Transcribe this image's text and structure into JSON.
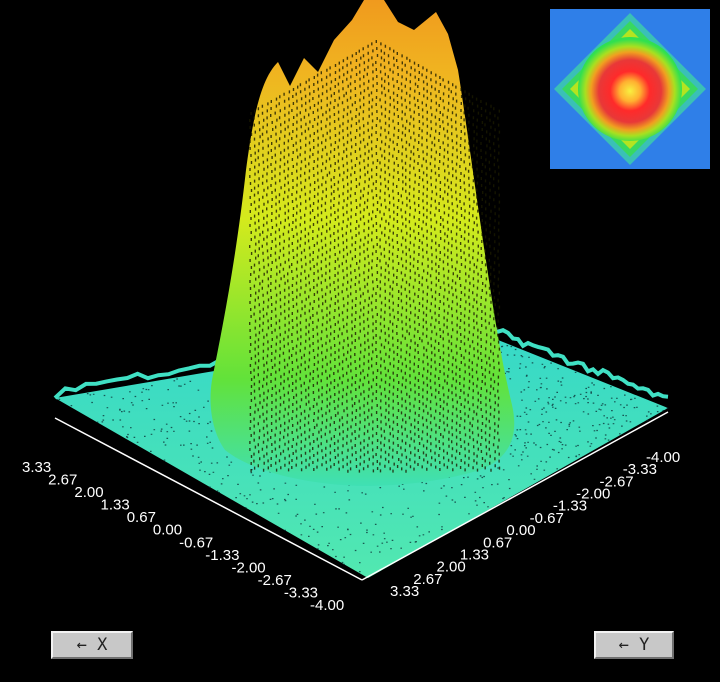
{
  "x_axis": {
    "ticks": [
      "3.33",
      "2.67",
      "2.00",
      "1.33",
      "0.67",
      "0.00",
      "-0.67",
      "-1.33",
      "-2.00",
      "-2.67",
      "-3.33",
      "-4.00"
    ]
  },
  "y_axis": {
    "ticks": [
      "3.33",
      "2.67",
      "2.00",
      "1.33",
      "0.67",
      "0.00",
      "-0.67",
      "-1.33",
      "-2.00",
      "-2.67",
      "-3.33",
      "-4.00"
    ]
  },
  "buttons": {
    "rotate_x_label": "← X",
    "rotate_y_label": "← Y"
  },
  "colors": {
    "background": "#000000",
    "floor": "#3fe0c8",
    "peak_low": "#62e23a",
    "peak_mid": "#dde818",
    "peak_high": "#f0a020",
    "inset_bg": "#2f7fe8"
  },
  "icons": {
    "rotate_x": "arrow-left-icon",
    "rotate_y": "arrow-left-icon"
  }
}
